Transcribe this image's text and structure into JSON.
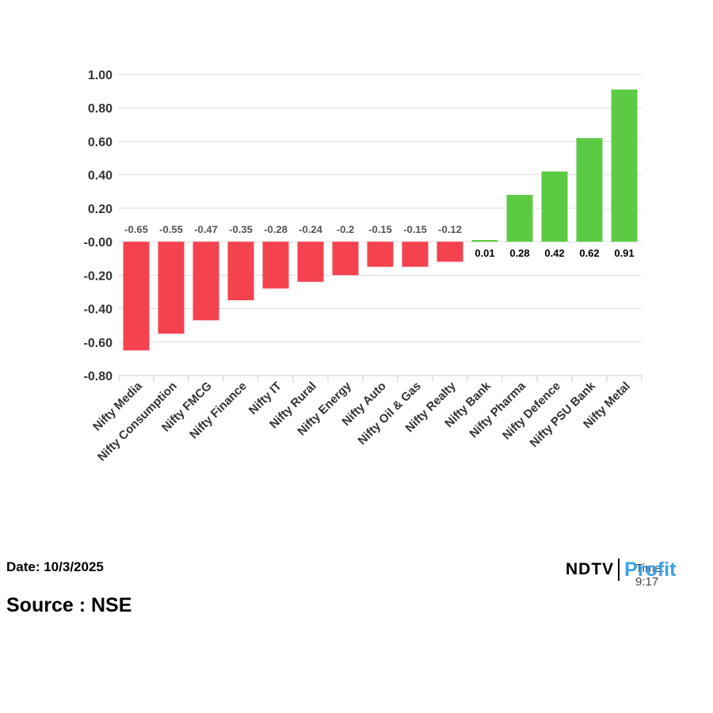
{
  "chart_data": {
    "type": "bar",
    "categories": [
      "Nifty Media",
      "Nifty Consumption",
      "Nifty FMCG",
      "Nifty Finance",
      "Nifty IT",
      "Nifty Rural",
      "Nifty Energy",
      "Nifty Auto",
      "Nifty Oil & Gas",
      "Nifty Realty",
      "Nifty Bank",
      "Nifty Pharma",
      "Nifty Defence",
      "Nifty PSU Bank",
      "Nifty Metal"
    ],
    "values": [
      -0.65,
      -0.55,
      -0.47,
      -0.35,
      -0.28,
      -0.24,
      -0.2,
      -0.15,
      -0.15,
      -0.12,
      0.01,
      0.28,
      0.42,
      0.62,
      0.91
    ],
    "value_labels": [
      "-0.65",
      "-0.55",
      "-0.47",
      "-0.35",
      "-0.28",
      "-0.24",
      "-0.2",
      "-0.15",
      "-0.15",
      "-0.12",
      "0.01",
      "0.28",
      "0.42",
      "0.62",
      "0.91"
    ],
    "yticks": [
      "1.00",
      "0.80",
      "0.60",
      "0.40",
      "0.20",
      "-0.00",
      "-0.20",
      "-0.40",
      "-0.60",
      "-0.80"
    ],
    "ylim": [
      -0.8,
      1.0
    ],
    "grid": true,
    "colors": {
      "negative": "#f5424f",
      "positive": "#5ccb44",
      "grid": "#dddddd"
    }
  },
  "footer": {
    "date": "Date: 10/3/2025",
    "source": "Source : NSE"
  },
  "brand": {
    "ndtv": "NDTV",
    "profit": "Profit",
    "overlap_text": "Time: 9:17"
  }
}
